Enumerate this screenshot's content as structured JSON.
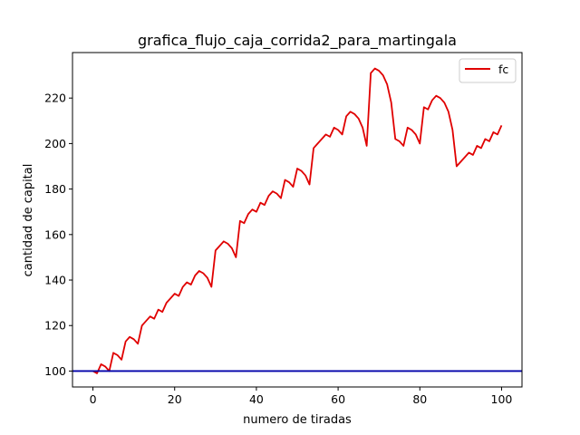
{
  "chart_data": {
    "type": "line",
    "title": "grafica_flujo_caja_corrida2_para_martingala",
    "xlabel": "numero de tiradas",
    "ylabel": "cantidad de capital",
    "xlim": [
      -5,
      105
    ],
    "ylim": [
      93,
      240
    ],
    "xticks": [
      0,
      20,
      40,
      60,
      80,
      100
    ],
    "yticks": [
      100,
      120,
      140,
      160,
      180,
      200,
      220
    ],
    "grid": false,
    "legend_position": "top-right",
    "series": [
      {
        "name": "fc",
        "color": "#e00000",
        "x": [
          0,
          1,
          2,
          3,
          4,
          5,
          6,
          7,
          8,
          9,
          10,
          11,
          12,
          13,
          14,
          15,
          16,
          17,
          18,
          19,
          20,
          21,
          22,
          23,
          24,
          25,
          26,
          27,
          28,
          29,
          30,
          31,
          32,
          33,
          34,
          35,
          36,
          37,
          38,
          39,
          40,
          41,
          42,
          43,
          44,
          45,
          46,
          47,
          48,
          49,
          50,
          51,
          52,
          53,
          54,
          55,
          56,
          57,
          58,
          59,
          60,
          61,
          62,
          63,
          64,
          65,
          66,
          67,
          68,
          69,
          70,
          71,
          72,
          73,
          74,
          75,
          76,
          77,
          78,
          79,
          80,
          81,
          82,
          83,
          84,
          85,
          86,
          87,
          88,
          89,
          90,
          91,
          92,
          93,
          94,
          95,
          96,
          97,
          98,
          99,
          100
        ],
        "y": [
          100,
          99,
          103,
          102,
          100,
          108,
          107,
          105,
          113,
          115,
          114,
          112,
          120,
          122,
          124,
          123,
          127,
          126,
          130,
          132,
          134,
          133,
          137,
          139,
          138,
          142,
          144,
          143,
          141,
          137,
          153,
          155,
          157,
          156,
          154,
          150,
          166,
          165,
          169,
          171,
          170,
          174,
          173,
          177,
          179,
          178,
          176,
          184,
          183,
          181,
          189,
          188,
          186,
          182,
          198,
          200,
          202,
          204,
          203,
          207,
          206,
          204,
          212,
          214,
          213,
          211,
          207,
          199,
          231,
          233,
          232,
          230,
          226,
          218,
          202,
          201,
          199,
          207,
          206,
          204,
          200,
          216,
          215,
          219,
          221,
          220,
          218,
          214,
          206,
          190,
          192,
          194,
          196,
          195,
          199,
          198,
          202,
          201,
          205,
          204,
          208
        ]
      },
      {
        "name": "",
        "color": "#0000aa",
        "type": "hline",
        "y": 100
      }
    ]
  }
}
